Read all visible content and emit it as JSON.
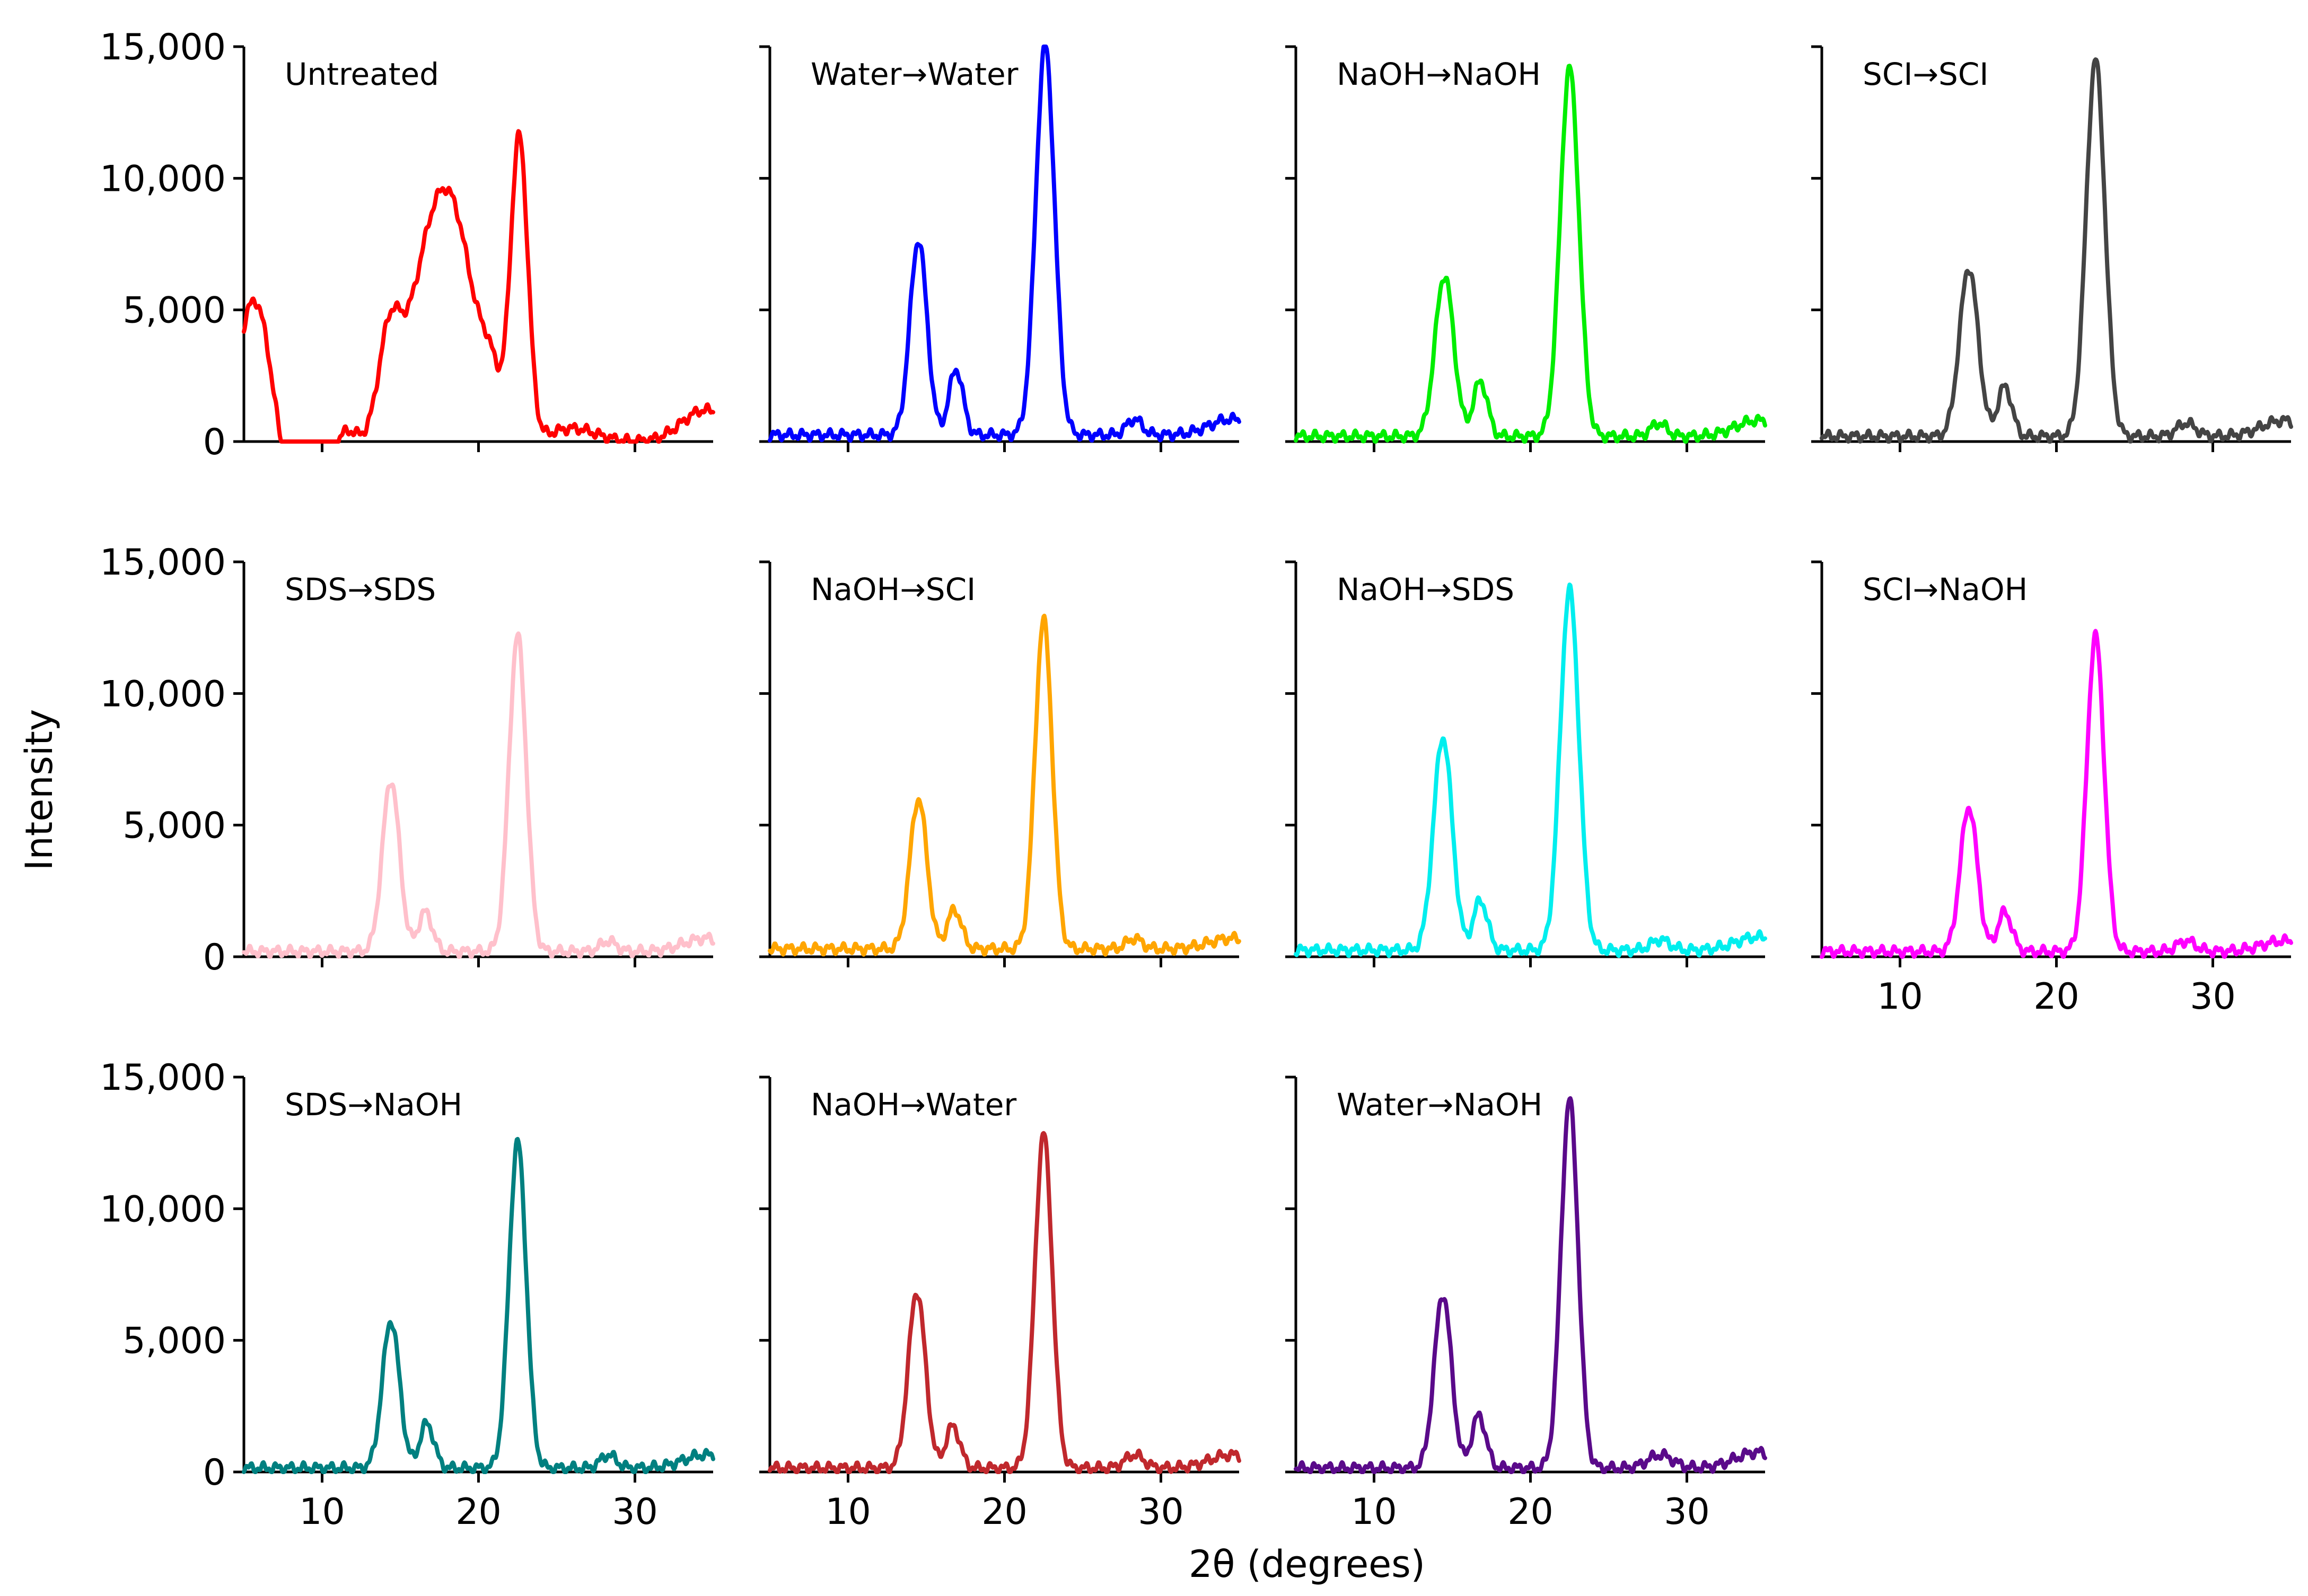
{
  "chart_data": {
    "type": "line",
    "xlabel": "2θ (degrees)",
    "ylabel": "Intensity",
    "xlim": [
      5,
      35
    ],
    "ylim": [
      0,
      15000
    ],
    "xticks": [
      10,
      20,
      30
    ],
    "xtick_labels": [
      "10",
      "20",
      "30"
    ],
    "yticks": [
      0,
      5000,
      10000,
      15000
    ],
    "ytick_labels": [
      "0",
      "5,000",
      "10,000",
      "15,000"
    ],
    "grid": false,
    "layout": "3 rows x 4 columns, 11 panels, shared axes",
    "panels": [
      {
        "name": "Untreated",
        "color": "#ff0000",
        "baseline": 0,
        "peaks": [
          [
            5.8,
            6000,
            1.1
          ],
          [
            8.2,
            -2500,
            1.5
          ],
          [
            11.5,
            600,
            0.6
          ],
          [
            14.3,
            3500,
            0.7
          ],
          [
            17.0,
            6800,
            1.5
          ],
          [
            18.8,
            5000,
            1.3
          ],
          [
            20.8,
            1800,
            0.6
          ],
          [
            22.6,
            11500,
            0.55
          ],
          [
            26.0,
            500,
            1.5
          ],
          [
            34.5,
            1200,
            1.5
          ]
        ]
      },
      {
        "name": "Water→Water",
        "color": "#0000ff",
        "baseline": 250,
        "peaks": [
          [
            14.5,
            7400,
            0.55
          ],
          [
            16.9,
            2500,
            0.45
          ],
          [
            22.6,
            14800,
            0.6
          ],
          [
            28.3,
            600,
            0.5
          ],
          [
            34.5,
            600,
            1.4
          ]
        ]
      },
      {
        "name": "NaOH→NaOH",
        "color": "#00ee00",
        "baseline": 200,
        "peaks": [
          [
            14.5,
            6100,
            0.6
          ],
          [
            16.8,
            2100,
            0.45
          ],
          [
            22.5,
            14000,
            0.6
          ],
          [
            28.2,
            500,
            0.5
          ],
          [
            34.5,
            600,
            1.4
          ]
        ]
      },
      {
        "name": "SCI→SCI",
        "color": "#444444",
        "baseline": 200,
        "peaks": [
          [
            14.4,
            6400,
            0.6
          ],
          [
            16.7,
            1900,
            0.45
          ],
          [
            22.5,
            14300,
            0.6
          ],
          [
            28.3,
            500,
            0.6
          ],
          [
            34.5,
            600,
            1.4
          ]
        ]
      },
      {
        "name": "SDS→SDS",
        "color": "#ffc0cb",
        "baseline": 200,
        "peaks": [
          [
            14.4,
            6500,
            0.55
          ],
          [
            16.6,
            1500,
            0.45
          ],
          [
            22.5,
            12000,
            0.55
          ],
          [
            28.3,
            400,
            0.5
          ],
          [
            34.5,
            500,
            1.4
          ]
        ]
      },
      {
        "name": "NaOH→SCI",
        "color": "#ffa500",
        "baseline": 300,
        "peaks": [
          [
            14.5,
            5700,
            0.55
          ],
          [
            16.8,
            1500,
            0.45
          ],
          [
            22.5,
            12500,
            0.55
          ],
          [
            28.3,
            400,
            0.5
          ],
          [
            34.5,
            400,
            1.4
          ]
        ]
      },
      {
        "name": "NaOH→SDS",
        "color": "#00eeee",
        "baseline": 250,
        "peaks": [
          [
            14.4,
            8100,
            0.6
          ],
          [
            16.8,
            1900,
            0.45
          ],
          [
            22.5,
            13700,
            0.6
          ],
          [
            28.3,
            400,
            0.6
          ],
          [
            34.5,
            500,
            1.4
          ]
        ]
      },
      {
        "name": "SCI→NaOH",
        "color": "#ff00ff",
        "baseline": 200,
        "peaks": [
          [
            14.4,
            5500,
            0.55
          ],
          [
            16.7,
            1500,
            0.45
          ],
          [
            22.5,
            12000,
            0.55
          ],
          [
            28.3,
            400,
            0.6
          ],
          [
            34.5,
            400,
            1.4
          ]
        ]
      },
      {
        "name": "SDS→NaOH",
        "color": "#008080",
        "baseline": 150,
        "peaks": [
          [
            14.4,
            5600,
            0.55
          ],
          [
            16.7,
            1700,
            0.45
          ],
          [
            22.5,
            12400,
            0.55
          ],
          [
            28.3,
            500,
            0.5
          ],
          [
            34.5,
            500,
            1.4
          ]
        ]
      },
      {
        "name": "NaOH→Water",
        "color": "#c0282d",
        "baseline": 150,
        "peaks": [
          [
            14.4,
            6700,
            0.55
          ],
          [
            16.7,
            1600,
            0.45
          ],
          [
            22.5,
            12700,
            0.55
          ],
          [
            28.3,
            500,
            0.6
          ],
          [
            34.5,
            500,
            1.4
          ]
        ]
      },
      {
        "name": "Water→NaOH",
        "color": "#5a0a8a",
        "baseline": 150,
        "peaks": [
          [
            14.4,
            6600,
            0.55
          ],
          [
            16.7,
            2000,
            0.45
          ],
          [
            22.5,
            14000,
            0.55
          ],
          [
            28.3,
            500,
            0.8
          ],
          [
            34.5,
            600,
            1.4
          ]
        ]
      }
    ]
  }
}
